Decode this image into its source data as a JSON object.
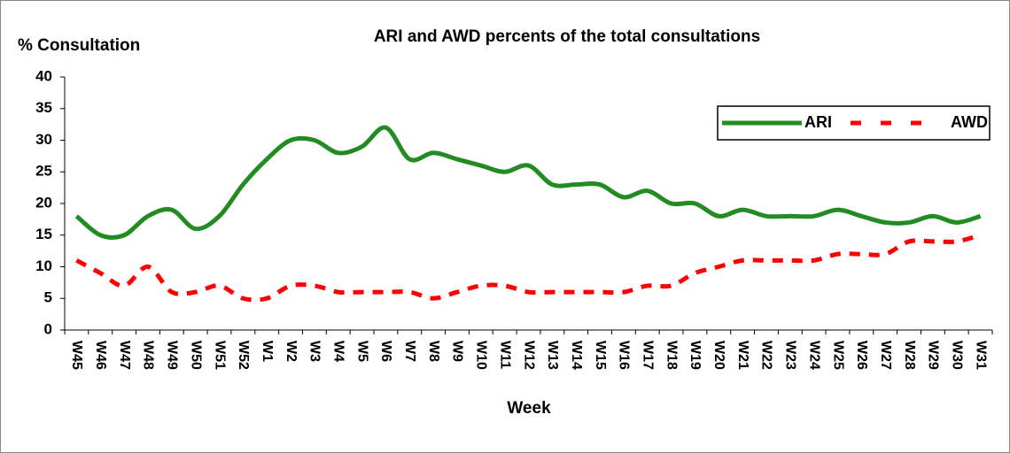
{
  "chart_data": {
    "type": "line",
    "title": "ARI and AWD percents of the total consultations",
    "y_label": "% Consultation",
    "x_label": "Week",
    "categories": [
      "W45",
      "W46",
      "W47",
      "W48",
      "W49",
      "W50",
      "W51",
      "W52",
      "W1",
      "W2",
      "W3",
      "W4",
      "W5",
      "W6",
      "W7",
      "W8",
      "W9",
      "W10",
      "W11",
      "W12",
      "W13",
      "W14",
      "W15",
      "W16",
      "W17",
      "W18",
      "W19",
      "W20",
      "W21",
      "W22",
      "W23",
      "W24",
      "W25",
      "W26",
      "W27",
      "W28",
      "W29",
      "W30",
      "W31"
    ],
    "series": [
      {
        "name": "ARI",
        "color": "#228b22",
        "dashed": false,
        "values": [
          18,
          15,
          15,
          18,
          19,
          16,
          18,
          23,
          27,
          30,
          30,
          28,
          29,
          32,
          27,
          28,
          27,
          26,
          25,
          26,
          23,
          23,
          23,
          21,
          22,
          20,
          20,
          18,
          19,
          18,
          18,
          18,
          19,
          18,
          17,
          17,
          18,
          17,
          18
        ]
      },
      {
        "name": "AWD",
        "color": "#ff0000",
        "dashed": true,
        "values": [
          11,
          9,
          7,
          10,
          6,
          6,
          7,
          5,
          5,
          7,
          7,
          6,
          6,
          6,
          6,
          5,
          6,
          7,
          7,
          6,
          6,
          6,
          6,
          6,
          7,
          7,
          9,
          10,
          11,
          11,
          11,
          11,
          12,
          12,
          12,
          14,
          14,
          14,
          15
        ]
      }
    ],
    "ylim": [
      0,
      40
    ],
    "yticks": [
      0,
      5,
      10,
      15,
      20,
      25,
      30,
      35,
      40
    ],
    "legend": "top-right"
  }
}
